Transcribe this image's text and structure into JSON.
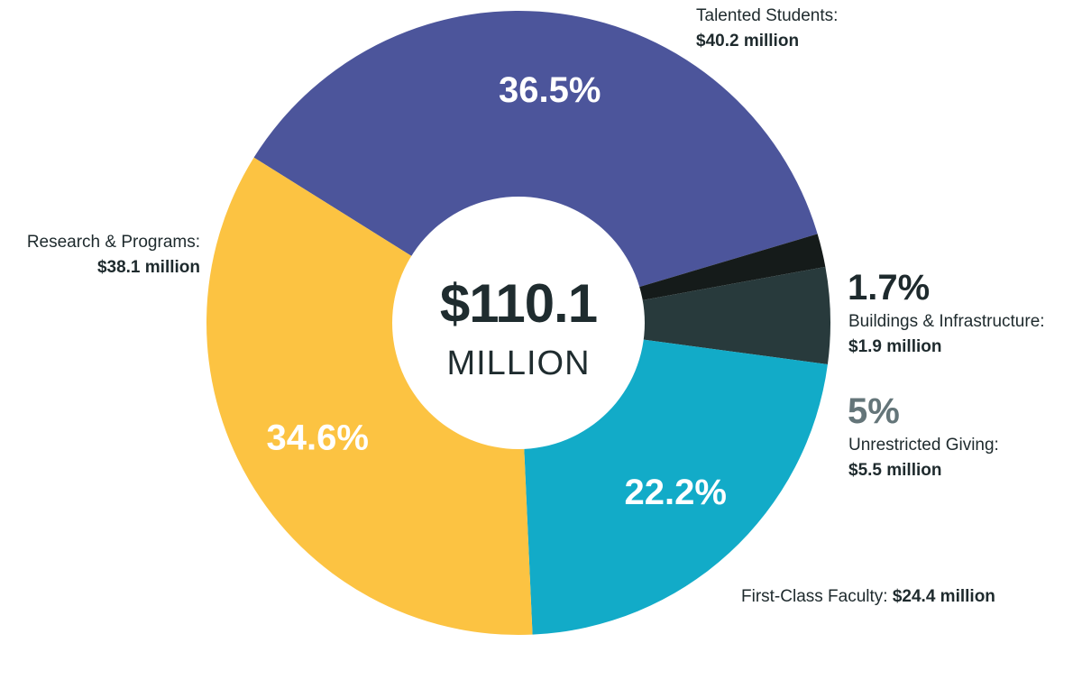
{
  "chart_data": {
    "type": "pie",
    "center": {
      "amount": "$110.1",
      "unit": "MILLION"
    },
    "slices": [
      {
        "label": "Talented Students:",
        "amount_text": "$40.2 million",
        "value": 40.2,
        "percent": 36.5,
        "percent_text": "36.5%",
        "color": "#4c559b"
      },
      {
        "label": "Buildings & Infrastructure:",
        "amount_text": "$1.9 million",
        "value": 1.9,
        "percent": 1.7,
        "percent_text": "1.7%",
        "color": "#151b1a"
      },
      {
        "label": "Unrestricted Giving:",
        "amount_text": "$5.5 million",
        "value": 5.5,
        "percent": 5,
        "percent_text": "5%",
        "color": "#283a3c"
      },
      {
        "label": "First-Class Faculty:",
        "amount_text": "$24.4 million",
        "value": 24.4,
        "percent": 22.2,
        "percent_text": "22.2%",
        "color": "#12abc8"
      },
      {
        "label": "Research & Programs:",
        "amount_text": "$38.1 million",
        "value": 38.1,
        "percent": 34.6,
        "percent_text": "34.6%",
        "color": "#fcc342"
      }
    ],
    "colors": {
      "outside_percent_dark": "#1e2a2d",
      "outside_percent_grey": "#647579"
    }
  }
}
